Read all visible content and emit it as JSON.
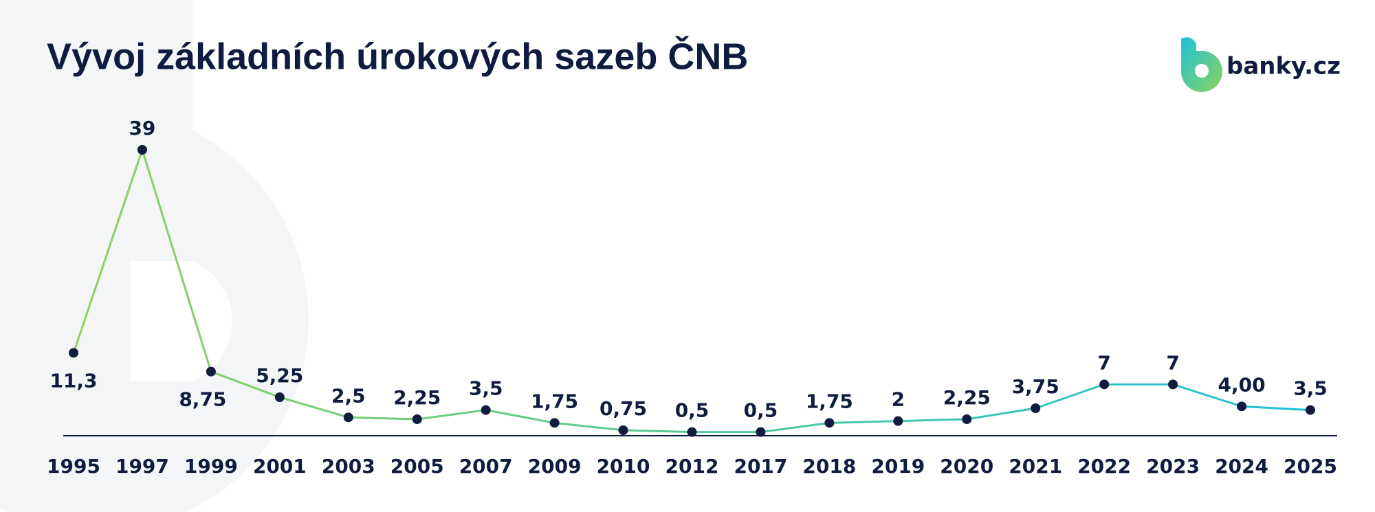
{
  "logo": "banky.cz",
  "chart_data": {
    "type": "line",
    "title": "Vývoj základních úrokových sazeb ČNB",
    "categories": [
      "1995",
      "1997",
      "1999",
      "2001",
      "2003",
      "2005",
      "2007",
      "2009",
      "2010",
      "2012",
      "2017",
      "2018",
      "2019",
      "2020",
      "2021",
      "2022",
      "2023",
      "2024",
      "2025"
    ],
    "values": [
      11.3,
      39,
      8.75,
      5.25,
      2.5,
      2.25,
      3.5,
      1.75,
      0.75,
      0.5,
      0.5,
      1.75,
      2,
      2.25,
      3.75,
      7,
      7,
      4.0,
      3.5
    ],
    "value_labels": [
      "11,3",
      "39",
      "8,75",
      "5,25",
      "2,5",
      "2,25",
      "3,5",
      "1,75",
      "0,75",
      "0,5",
      "0,5",
      "1,75",
      "2",
      "2,25",
      "3,75",
      "7",
      "7",
      "4,00",
      "3,5"
    ],
    "line_gradient": [
      "#8bd35a",
      "#1fc1d8"
    ],
    "marker_color": "#0f1c3f"
  }
}
